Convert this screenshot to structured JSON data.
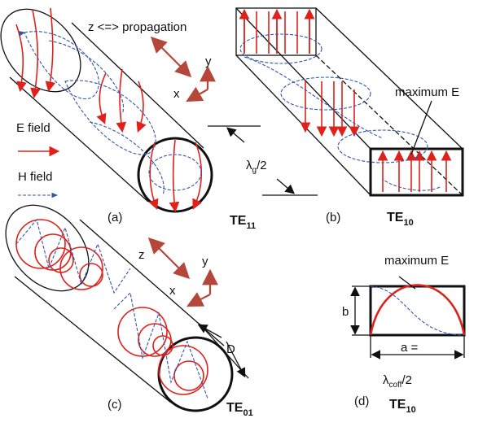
{
  "panel_a": {
    "axis_note": "z <=> propagation",
    "axis_y": "y",
    "axis_x": "x",
    "legend": [
      {
        "label": "E field"
      },
      {
        "label": "H field"
      }
    ],
    "label": "(a)",
    "mode": {
      "main": "TE",
      "sub": "11"
    }
  },
  "guide_length": {
    "symbol": "λ",
    "sub": "g",
    "rest": "/2"
  },
  "panel_b": {
    "annotation": "maximum E",
    "label": "(b)",
    "mode": {
      "main": "TE",
      "sub": "10"
    }
  },
  "panel_c": {
    "axis_z": "z",
    "axis_y": "y",
    "axis_x": "x",
    "dimension": "D",
    "label": "(c)",
    "mode": {
      "main": "TE",
      "sub": "01"
    }
  },
  "panel_d": {
    "annotation": "maximum E",
    "height": "b",
    "width": "a =",
    "cutoff": {
      "symbol": "λ",
      "sub": "coff",
      "rest": "/2"
    },
    "label": "(d)",
    "mode": {
      "main": "TE",
      "sub": "10"
    }
  }
}
